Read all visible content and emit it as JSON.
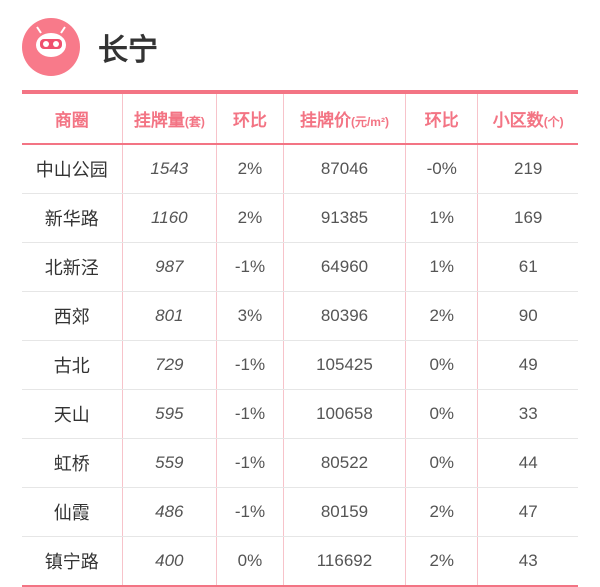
{
  "header": {
    "title": "长宁",
    "logo_bg": "#f87a8a"
  },
  "table": {
    "accent_color": "#f37484",
    "columns": [
      {
        "label": "商圈",
        "unit": ""
      },
      {
        "label": "挂牌量",
        "unit": "(套)"
      },
      {
        "label": "环比",
        "unit": ""
      },
      {
        "label": "挂牌价",
        "unit": "(元/m²)"
      },
      {
        "label": "环比",
        "unit": ""
      },
      {
        "label": "小区数",
        "unit": "(个)"
      }
    ],
    "rows": [
      {
        "name": "中山公园",
        "listing": "1543",
        "mo_m1": "2%",
        "price": "87046",
        "mo_m2": "-0%",
        "communities": "219"
      },
      {
        "name": "新华路",
        "listing": "1160",
        "mo_m1": "2%",
        "price": "91385",
        "mo_m2": "1%",
        "communities": "169"
      },
      {
        "name": "北新泾",
        "listing": "987",
        "mo_m1": "-1%",
        "price": "64960",
        "mo_m2": "1%",
        "communities": "61"
      },
      {
        "name": "西郊",
        "listing": "801",
        "mo_m1": "3%",
        "price": "80396",
        "mo_m2": "2%",
        "communities": "90"
      },
      {
        "name": "古北",
        "listing": "729",
        "mo_m1": "-1%",
        "price": "105425",
        "mo_m2": "0%",
        "communities": "49"
      },
      {
        "name": "天山",
        "listing": "595",
        "mo_m1": "-1%",
        "price": "100658",
        "mo_m2": "0%",
        "communities": "33"
      },
      {
        "name": "虹桥",
        "listing": "559",
        "mo_m1": "-1%",
        "price": "80522",
        "mo_m2": "0%",
        "communities": "44"
      },
      {
        "name": "仙霞",
        "listing": "486",
        "mo_m1": "-1%",
        "price": "80159",
        "mo_m2": "2%",
        "communities": "47"
      },
      {
        "name": "镇宁路",
        "listing": "400",
        "mo_m1": "0%",
        "price": "116692",
        "mo_m2": "2%",
        "communities": "43"
      }
    ]
  }
}
